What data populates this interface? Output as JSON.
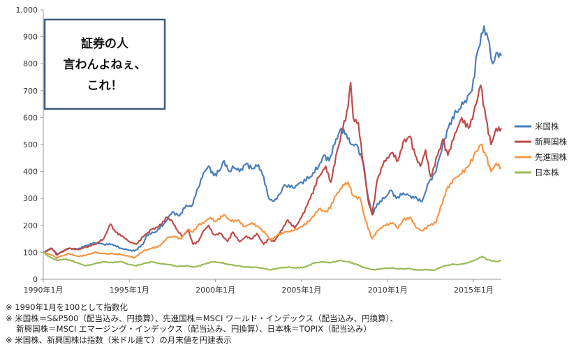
{
  "callout": {
    "lines": [
      "証券の人",
      "言わんよねぇ、",
      "これ！"
    ]
  },
  "notes": [
    "※ 1990年1月を100として指数化",
    "※ 米国株＝S&P500（配当込み、円換算）、先進国株＝MSCI ワールド・インデックス（配当込み、円換算）、",
    "　 新興国株＝MSCI エマージング・インデックス（配当込み、円換算）、日本株＝TOPIX（配当込み）",
    "※ 米国株、新興国株は指数（米ドル建て）の月末値を円建表示"
  ],
  "chart_data": {
    "type": "line",
    "title": "",
    "xlabel": "",
    "ylabel": "",
    "x_range": [
      1990.0,
      2016.6
    ],
    "ylim": [
      0,
      1000
    ],
    "y_ticks": [
      0,
      100,
      200,
      300,
      400,
      500,
      600,
      700,
      800,
      900,
      1000
    ],
    "y_tick_labels": [
      "0",
      "100",
      "200",
      "300",
      "400",
      "500",
      "600",
      "700",
      "800",
      "900",
      "1,000"
    ],
    "x_ticks": [
      1990,
      1995,
      2000,
      2005,
      2010,
      2015
    ],
    "x_tick_labels": [
      "1990年1月",
      "1995年1月",
      "2000年1月",
      "2005年1月",
      "2010年1月",
      "2015年1月"
    ],
    "grid": false,
    "legend_position": "right",
    "series": [
      {
        "name": "米国株",
        "color": "#4a7ebb",
        "points": [
          [
            1990.0,
            100
          ],
          [
            1990.5,
            115
          ],
          [
            1990.8,
            95
          ],
          [
            1991.0,
            100
          ],
          [
            1991.5,
            115
          ],
          [
            1992.0,
            112
          ],
          [
            1992.5,
            125
          ],
          [
            1993.0,
            135
          ],
          [
            1993.5,
            130
          ],
          [
            1994.0,
            130
          ],
          [
            1994.5,
            115
          ],
          [
            1995.0,
            108
          ],
          [
            1995.3,
            105
          ],
          [
            1995.8,
            130
          ],
          [
            1996.0,
            165
          ],
          [
            1996.5,
            175
          ],
          [
            1997.0,
            205
          ],
          [
            1997.5,
            250
          ],
          [
            1997.9,
            235
          ],
          [
            1998.3,
            275
          ],
          [
            1998.6,
            270
          ],
          [
            1999.0,
            340
          ],
          [
            1999.3,
            395
          ],
          [
            1999.6,
            420
          ],
          [
            1999.9,
            385
          ],
          [
            2000.2,
            400
          ],
          [
            2000.5,
            440
          ],
          [
            2000.8,
            400
          ],
          [
            2001.0,
            420
          ],
          [
            2001.4,
            400
          ],
          [
            2001.8,
            430
          ],
          [
            2002.1,
            410
          ],
          [
            2002.5,
            425
          ],
          [
            2002.8,
            380
          ],
          [
            2003.1,
            300
          ],
          [
            2003.4,
            290
          ],
          [
            2003.8,
            320
          ],
          [
            2004.0,
            350
          ],
          [
            2004.5,
            340
          ],
          [
            2005.0,
            360
          ],
          [
            2005.5,
            380
          ],
          [
            2006.0,
            420
          ],
          [
            2006.3,
            460
          ],
          [
            2006.6,
            440
          ],
          [
            2007.0,
            520
          ],
          [
            2007.3,
            560
          ],
          [
            2007.6,
            540
          ],
          [
            2007.9,
            500
          ],
          [
            2008.2,
            500
          ],
          [
            2008.6,
            430
          ],
          [
            2008.8,
            330
          ],
          [
            2009.1,
            240
          ],
          [
            2009.4,
            280
          ],
          [
            2009.8,
            300
          ],
          [
            2010.2,
            330
          ],
          [
            2010.5,
            300
          ],
          [
            2010.9,
            320
          ],
          [
            2011.3,
            310
          ],
          [
            2011.7,
            300
          ],
          [
            2012.0,
            290
          ],
          [
            2012.4,
            360
          ],
          [
            2012.8,
            400
          ],
          [
            2013.0,
            450
          ],
          [
            2013.3,
            520
          ],
          [
            2013.6,
            580
          ],
          [
            2014.0,
            620
          ],
          [
            2014.4,
            650
          ],
          [
            2014.9,
            700
          ],
          [
            2015.2,
            840
          ],
          [
            2015.6,
            940
          ],
          [
            2015.9,
            880
          ],
          [
            2016.1,
            800
          ],
          [
            2016.3,
            840
          ],
          [
            2016.6,
            830
          ]
        ]
      },
      {
        "name": "新興国株",
        "color": "#be4b48",
        "points": [
          [
            1990.0,
            100
          ],
          [
            1990.5,
            115
          ],
          [
            1990.8,
            90
          ],
          [
            1991.0,
            100
          ],
          [
            1991.5,
            115
          ],
          [
            1992.0,
            110
          ],
          [
            1992.5,
            120
          ],
          [
            1993.0,
            130
          ],
          [
            1993.5,
            150
          ],
          [
            1993.9,
            205
          ],
          [
            1994.2,
            175
          ],
          [
            1994.6,
            160
          ],
          [
            1995.0,
            140
          ],
          [
            1995.4,
            130
          ],
          [
            1995.9,
            165
          ],
          [
            1996.3,
            185
          ],
          [
            1996.7,
            195
          ],
          [
            1997.2,
            230
          ],
          [
            1997.5,
            215
          ],
          [
            1997.8,
            180
          ],
          [
            1998.1,
            160
          ],
          [
            1998.4,
            185
          ],
          [
            1998.7,
            130
          ],
          [
            1999.0,
            140
          ],
          [
            1999.3,
            180
          ],
          [
            1999.6,
            200
          ],
          [
            1999.9,
            165
          ],
          [
            2000.3,
            170
          ],
          [
            2000.7,
            140
          ],
          [
            2001.0,
            175
          ],
          [
            2001.4,
            140
          ],
          [
            2001.8,
            160
          ],
          [
            2002.1,
            150
          ],
          [
            2002.4,
            170
          ],
          [
            2002.8,
            130
          ],
          [
            2003.1,
            150
          ],
          [
            2003.4,
            140
          ],
          [
            2003.8,
            180
          ],
          [
            2004.2,
            220
          ],
          [
            2004.6,
            190
          ],
          [
            2005.0,
            230
          ],
          [
            2005.5,
            300
          ],
          [
            2006.0,
            380
          ],
          [
            2006.4,
            420
          ],
          [
            2006.7,
            360
          ],
          [
            2007.0,
            460
          ],
          [
            2007.4,
            560
          ],
          [
            2007.7,
            640
          ],
          [
            2007.85,
            730
          ],
          [
            2008.0,
            600
          ],
          [
            2008.3,
            580
          ],
          [
            2008.6,
            420
          ],
          [
            2008.9,
            280
          ],
          [
            2009.1,
            240
          ],
          [
            2009.4,
            370
          ],
          [
            2009.8,
            440
          ],
          [
            2010.3,
            470
          ],
          [
            2010.6,
            440
          ],
          [
            2010.9,
            510
          ],
          [
            2011.3,
            530
          ],
          [
            2011.6,
            460
          ],
          [
            2011.9,
            420
          ],
          [
            2012.2,
            480
          ],
          [
            2012.5,
            380
          ],
          [
            2012.9,
            460
          ],
          [
            2013.2,
            520
          ],
          [
            2013.5,
            460
          ],
          [
            2013.9,
            540
          ],
          [
            2014.3,
            600
          ],
          [
            2014.7,
            560
          ],
          [
            2015.0,
            620
          ],
          [
            2015.4,
            720
          ],
          [
            2015.7,
            600
          ],
          [
            2016.0,
            500
          ],
          [
            2016.3,
            560
          ],
          [
            2016.6,
            560
          ]
        ]
      },
      {
        "name": "先進国株",
        "color": "#f79646",
        "points": [
          [
            1990.0,
            100
          ],
          [
            1990.5,
            90
          ],
          [
            1990.8,
            78
          ],
          [
            1991.0,
            85
          ],
          [
            1991.5,
            95
          ],
          [
            1992.0,
            85
          ],
          [
            1992.5,
            90
          ],
          [
            1993.0,
            100
          ],
          [
            1993.5,
            95
          ],
          [
            1994.0,
            95
          ],
          [
            1994.5,
            92
          ],
          [
            1995.0,
            85
          ],
          [
            1995.3,
            80
          ],
          [
            1995.8,
            105
          ],
          [
            1996.3,
            115
          ],
          [
            1996.8,
            125
          ],
          [
            1997.2,
            155
          ],
          [
            1997.6,
            160
          ],
          [
            1998.0,
            150
          ],
          [
            1998.4,
            185
          ],
          [
            1998.7,
            175
          ],
          [
            1999.0,
            200
          ],
          [
            1999.4,
            215
          ],
          [
            1999.7,
            230
          ],
          [
            2000.0,
            215
          ],
          [
            2000.5,
            240
          ],
          [
            2000.9,
            215
          ],
          [
            2001.3,
            220
          ],
          [
            2001.7,
            195
          ],
          [
            2002.1,
            210
          ],
          [
            2002.5,
            195
          ],
          [
            2002.9,
            170
          ],
          [
            2003.2,
            145
          ],
          [
            2003.6,
            165
          ],
          [
            2004.0,
            175
          ],
          [
            2004.5,
            180
          ],
          [
            2005.0,
            195
          ],
          [
            2005.5,
            220
          ],
          [
            2006.0,
            260
          ],
          [
            2006.5,
            250
          ],
          [
            2007.0,
            310
          ],
          [
            2007.4,
            350
          ],
          [
            2007.7,
            360
          ],
          [
            2008.0,
            310
          ],
          [
            2008.4,
            300
          ],
          [
            2008.7,
            220
          ],
          [
            2009.1,
            150
          ],
          [
            2009.4,
            180
          ],
          [
            2009.8,
            200
          ],
          [
            2010.3,
            210
          ],
          [
            2010.6,
            190
          ],
          [
            2010.9,
            220
          ],
          [
            2011.3,
            230
          ],
          [
            2011.7,
            190
          ],
          [
            2012.0,
            180
          ],
          [
            2012.4,
            200
          ],
          [
            2012.8,
            210
          ],
          [
            2013.0,
            250
          ],
          [
            2013.4,
            330
          ],
          [
            2013.8,
            370
          ],
          [
            2014.2,
            390
          ],
          [
            2014.7,
            420
          ],
          [
            2015.0,
            460
          ],
          [
            2015.4,
            500
          ],
          [
            2015.7,
            460
          ],
          [
            2016.0,
            400
          ],
          [
            2016.3,
            430
          ],
          [
            2016.6,
            415
          ]
        ]
      },
      {
        "name": "日本株",
        "color": "#9bbb59",
        "points": [
          [
            1990.0,
            100
          ],
          [
            1990.3,
            85
          ],
          [
            1990.8,
            70
          ],
          [
            1991.2,
            75
          ],
          [
            1991.6,
            70
          ],
          [
            1992.0,
            60
          ],
          [
            1992.5,
            50
          ],
          [
            1993.0,
            58
          ],
          [
            1993.5,
            65
          ],
          [
            1994.0,
            62
          ],
          [
            1994.5,
            66
          ],
          [
            1995.0,
            55
          ],
          [
            1995.4,
            50
          ],
          [
            1995.8,
            58
          ],
          [
            1996.3,
            65
          ],
          [
            1996.8,
            58
          ],
          [
            1997.3,
            55
          ],
          [
            1997.8,
            48
          ],
          [
            1998.3,
            50
          ],
          [
            1998.8,
            45
          ],
          [
            1999.3,
            55
          ],
          [
            1999.8,
            65
          ],
          [
            2000.3,
            62
          ],
          [
            2000.8,
            55
          ],
          [
            2001.3,
            50
          ],
          [
            2001.8,
            45
          ],
          [
            2002.3,
            45
          ],
          [
            2002.8,
            40
          ],
          [
            2003.2,
            35
          ],
          [
            2003.7,
            42
          ],
          [
            2004.2,
            45
          ],
          [
            2004.7,
            42
          ],
          [
            2005.2,
            45
          ],
          [
            2005.7,
            60
          ],
          [
            2006.2,
            65
          ],
          [
            2006.7,
            62
          ],
          [
            2007.2,
            70
          ],
          [
            2007.7,
            65
          ],
          [
            2008.2,
            55
          ],
          [
            2008.7,
            42
          ],
          [
            2009.2,
            35
          ],
          [
            2009.7,
            40
          ],
          [
            2010.2,
            42
          ],
          [
            2010.7,
            38
          ],
          [
            2011.2,
            40
          ],
          [
            2011.7,
            34
          ],
          [
            2012.2,
            36
          ],
          [
            2012.7,
            34
          ],
          [
            2013.2,
            48
          ],
          [
            2013.7,
            55
          ],
          [
            2014.2,
            55
          ],
          [
            2014.7,
            62
          ],
          [
            2015.2,
            75
          ],
          [
            2015.5,
            85
          ],
          [
            2015.8,
            72
          ],
          [
            2016.1,
            68
          ],
          [
            2016.4,
            65
          ],
          [
            2016.6,
            70
          ]
        ]
      }
    ]
  }
}
